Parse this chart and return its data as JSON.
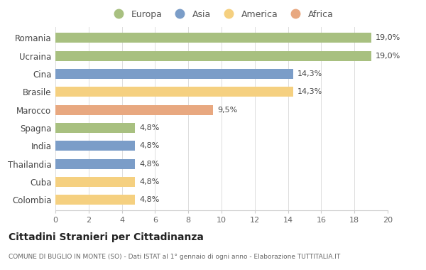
{
  "countries": [
    "Romania",
    "Ucraina",
    "Cina",
    "Brasile",
    "Marocco",
    "Spagna",
    "India",
    "Thailandia",
    "Cuba",
    "Colombia"
  ],
  "values": [
    19.0,
    19.0,
    14.3,
    14.3,
    9.5,
    4.8,
    4.8,
    4.8,
    4.8,
    4.8
  ],
  "labels": [
    "19,0%",
    "19,0%",
    "14,3%",
    "14,3%",
    "9,5%",
    "4,8%",
    "4,8%",
    "4,8%",
    "4,8%",
    "4,8%"
  ],
  "colors": [
    "#a8c080",
    "#a8c080",
    "#7b9dc8",
    "#f5d080",
    "#e8a880",
    "#a8c080",
    "#7b9dc8",
    "#7b9dc8",
    "#f5d080",
    "#f5d080"
  ],
  "legend_labels": [
    "Europa",
    "Asia",
    "America",
    "Africa"
  ],
  "legend_colors": [
    "#a8c080",
    "#7b9dc8",
    "#f5d080",
    "#e8a880"
  ],
  "title": "Cittadini Stranieri per Cittadinanza",
  "subtitle": "COMUNE DI BUGLIO IN MONTE (SO) - Dati ISTAT al 1° gennaio di ogni anno - Elaborazione TUTTITALIA.IT",
  "xlim": [
    0,
    20
  ],
  "xticks": [
    0,
    2,
    4,
    6,
    8,
    10,
    12,
    14,
    16,
    18,
    20
  ],
  "bg_color": "#ffffff",
  "bar_height": 0.55
}
